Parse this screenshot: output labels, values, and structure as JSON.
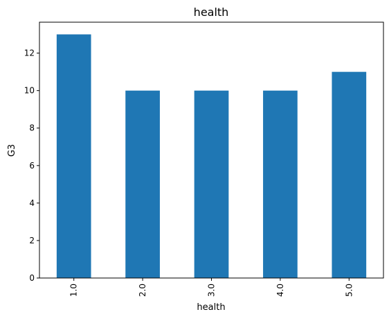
{
  "chart_data": {
    "type": "bar",
    "title": "health",
    "xlabel": "health",
    "ylabel": "G3",
    "categories": [
      "1.0",
      "2.0",
      "3.0",
      "4.0",
      "5.0"
    ],
    "values": [
      13,
      10,
      10,
      10,
      11
    ],
    "ylim": [
      0,
      13.65
    ],
    "yticks": [
      0,
      2,
      4,
      6,
      8,
      10,
      12
    ],
    "grid": false,
    "legend": "none",
    "bar_color": "#1f77b4"
  }
}
